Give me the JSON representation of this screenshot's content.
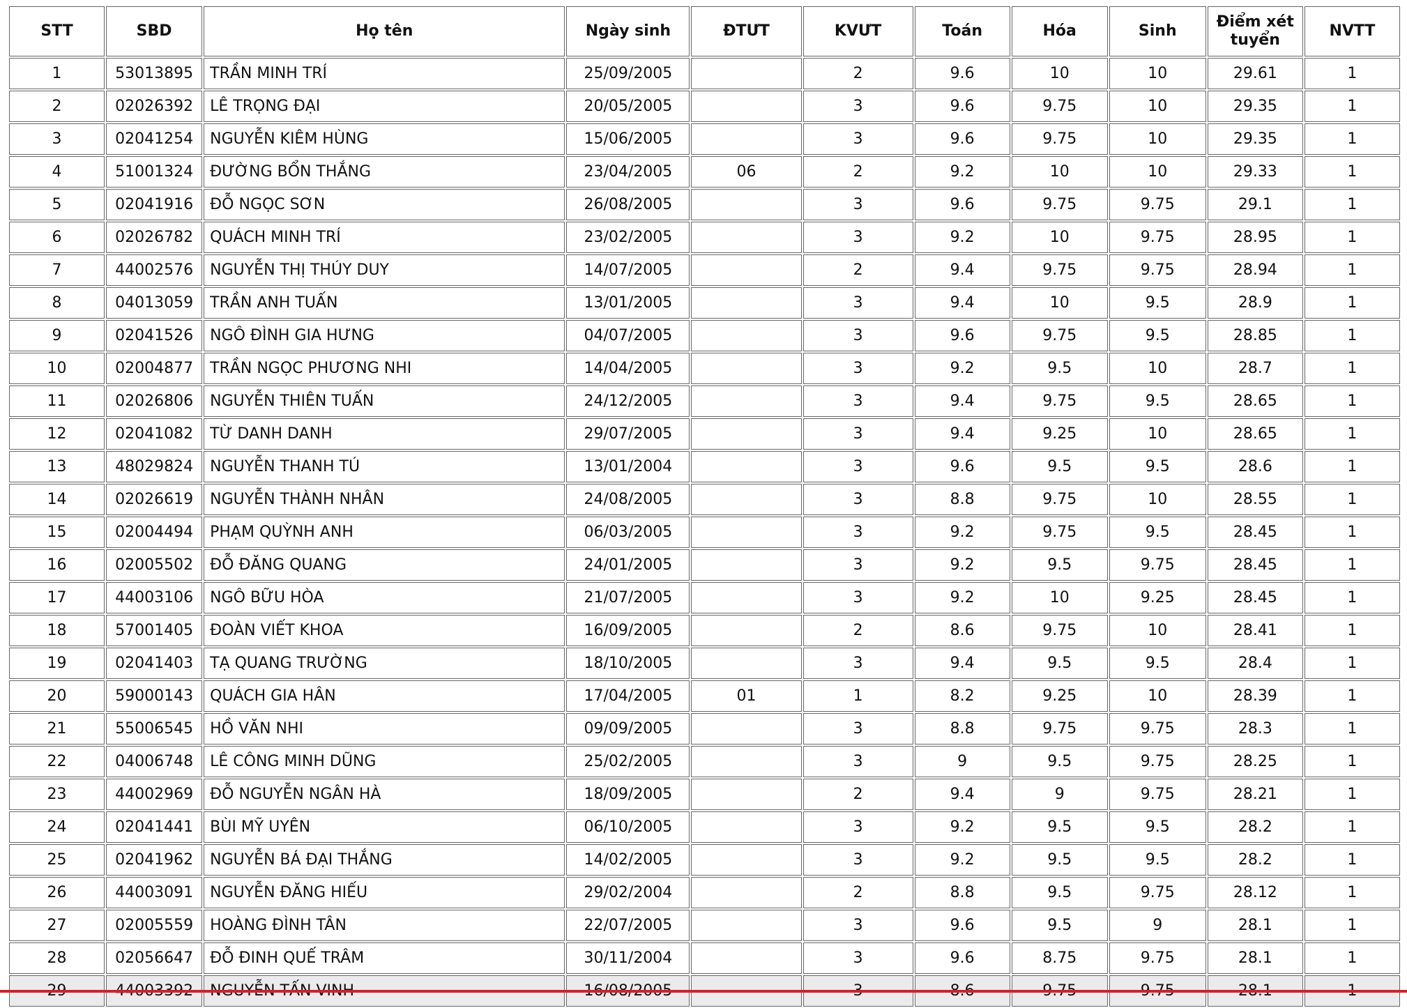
{
  "table": {
    "header": [
      "STT",
      "SBD",
      "Họ tên",
      "Ngày sinh",
      "ĐTƯT",
      "KVƯT",
      "Toán",
      "Hóa",
      "Sinh",
      "Điểm xét tuyển",
      "NVTT"
    ],
    "rows": [
      [
        "1",
        "53013895",
        "TRẦN MINH TRÍ",
        "25/09/2005",
        null,
        "2",
        "9.6",
        "10",
        "10",
        "29.61",
        "1"
      ],
      [
        "2",
        "02026392",
        "LÊ TRỌNG ĐẠI",
        "20/05/2005",
        null,
        "3",
        "9.6",
        "9.75",
        "10",
        "29.35",
        "1"
      ],
      [
        "3",
        "02041254",
        "NGUYỄN KIÊM HÙNG",
        "15/06/2005",
        null,
        "3",
        "9.6",
        "9.75",
        "10",
        "29.35",
        "1"
      ],
      [
        "4",
        "51001324",
        "ĐƯỜNG BỔN THẮNG",
        "23/04/2005",
        "06",
        "2",
        "9.2",
        "10",
        "10",
        "29.33",
        "1"
      ],
      [
        "5",
        "02041916",
        "ĐỖ NGỌC SƠN",
        "26/08/2005",
        null,
        "3",
        "9.6",
        "9.75",
        "9.75",
        "29.1",
        "1"
      ],
      [
        "6",
        "02026782",
        "QUÁCH MINH TRÍ",
        "23/02/2005",
        null,
        "3",
        "9.2",
        "10",
        "9.75",
        "28.95",
        "1"
      ],
      [
        "7",
        "44002576",
        "NGUYỄN THỊ THÚY DUY",
        "14/07/2005",
        null,
        "2",
        "9.4",
        "9.75",
        "9.75",
        "28.94",
        "1"
      ],
      [
        "8",
        "04013059",
        "TRẦN ANH TUẤN",
        "13/01/2005",
        null,
        "3",
        "9.4",
        "10",
        "9.5",
        "28.9",
        "1"
      ],
      [
        "9",
        "02041526",
        "NGÔ ĐÌNH GIA HƯNG",
        "04/07/2005",
        null,
        "3",
        "9.6",
        "9.75",
        "9.5",
        "28.85",
        "1"
      ],
      [
        "10",
        "02004877",
        "TRẦN NGỌC PHƯƠNG NHI",
        "14/04/2005",
        null,
        "3",
        "9.2",
        "9.5",
        "10",
        "28.7",
        "1"
      ],
      [
        "11",
        "02026806",
        "NGUYỄN THIÊN TUẤN",
        "24/12/2005",
        null,
        "3",
        "9.4",
        "9.75",
        "9.5",
        "28.65",
        "1"
      ],
      [
        "12",
        "02041082",
        "TỪ DANH DANH",
        "29/07/2005",
        null,
        "3",
        "9.4",
        "9.25",
        "10",
        "28.65",
        "1"
      ],
      [
        "13",
        "48029824",
        "NGUYỄN THANH TÚ",
        "13/01/2004",
        null,
        "3",
        "9.6",
        "9.5",
        "9.5",
        "28.6",
        "1"
      ],
      [
        "14",
        "02026619",
        "NGUYỄN THÀNH NHÂN",
        "24/08/2005",
        null,
        "3",
        "8.8",
        "9.75",
        "10",
        "28.55",
        "1"
      ],
      [
        "15",
        "02004494",
        "PHẠM QUỲNH ANH",
        "06/03/2005",
        null,
        "3",
        "9.2",
        "9.75",
        "9.5",
        "28.45",
        "1"
      ],
      [
        "16",
        "02005502",
        "ĐỖ ĐĂNG QUANG",
        "24/01/2005",
        null,
        "3",
        "9.2",
        "9.5",
        "9.75",
        "28.45",
        "1"
      ],
      [
        "17",
        "44003106",
        "NGÔ BỮU HÒA",
        "21/07/2005",
        null,
        "3",
        "9.2",
        "10",
        "9.25",
        "28.45",
        "1"
      ],
      [
        "18",
        "57001405",
        "ĐOÀN VIẾT KHOA",
        "16/09/2005",
        null,
        "2",
        "8.6",
        "9.75",
        "10",
        "28.41",
        "1"
      ],
      [
        "19",
        "02041403",
        "TẠ QUANG TRƯỜNG",
        "18/10/2005",
        null,
        "3",
        "9.4",
        "9.5",
        "9.5",
        "28.4",
        "1"
      ],
      [
        "20",
        "59000143",
        "QUÁCH GIA HÂN",
        "17/04/2005",
        "01",
        "1",
        "8.2",
        "9.25",
        "10",
        "28.39",
        "1"
      ],
      [
        "21",
        "55006545",
        "HỒ VĂN NHI",
        "09/09/2005",
        null,
        "3",
        "8.8",
        "9.75",
        "9.75",
        "28.3",
        "1"
      ],
      [
        "22",
        "04006748",
        "LÊ CÔNG MINH DŨNG",
        "25/02/2005",
        null,
        "3",
        "9",
        "9.5",
        "9.75",
        "28.25",
        "1"
      ],
      [
        "23",
        "44002969",
        "ĐỖ NGUYỄN NGÂN HÀ",
        "18/09/2005",
        null,
        "2",
        "9.4",
        "9",
        "9.75",
        "28.21",
        "1"
      ],
      [
        "24",
        "02041441",
        "BÙI MỸ UYÊN",
        "06/10/2005",
        null,
        "3",
        "9.2",
        "9.5",
        "9.5",
        "28.2",
        "1"
      ],
      [
        "25",
        "02041962",
        "NGUYỄN BÁ ĐẠI THẮNG",
        "14/02/2005",
        null,
        "3",
        "9.2",
        "9.5",
        "9.5",
        "28.2",
        "1"
      ],
      [
        "26",
        "44003091",
        "NGUYỄN ĐĂNG HIẾU",
        "29/02/2004",
        null,
        "2",
        "8.8",
        "9.5",
        "9.75",
        "28.12",
        "1"
      ],
      [
        "27",
        "02005559",
        "HOÀNG ĐÌNH TÂN",
        "22/07/2005",
        null,
        "3",
        "9.6",
        "9.5",
        "9",
        "28.1",
        "1"
      ],
      [
        "28",
        "02056647",
        "ĐỖ ĐINH QUẾ TRÂM",
        "30/11/2004",
        null,
        "3",
        "9.6",
        "8.75",
        "9.75",
        "28.1",
        "1"
      ],
      [
        "29",
        "44003392",
        "NGUYỄN TẤN VINH",
        "16/08/2005",
        null,
        "3",
        "8.6",
        "9.75",
        "9.75",
        "28.1",
        "1"
      ]
    ]
  }
}
